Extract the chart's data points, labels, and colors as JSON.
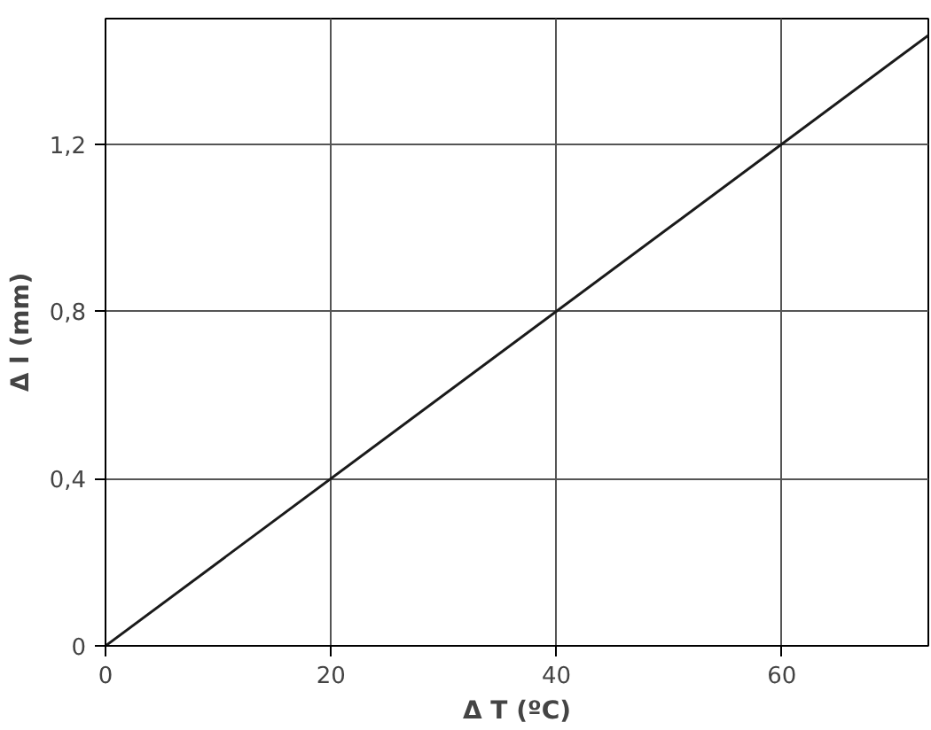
{
  "chart_data": {
    "type": "line",
    "xlabel": "Δ T (ºC)",
    "ylabel": "Δ l (mm)",
    "x": [
      0,
      73
    ],
    "series": [
      {
        "color": "#1a1a1a",
        "values": [
          0,
          1.46
        ]
      }
    ],
    "xlim": [
      0,
      73
    ],
    "ylim": [
      0,
      1.5
    ],
    "xticks": [
      0,
      20,
      40,
      60
    ],
    "yticks": [
      0,
      {
        "value": 0.4,
        "label": "0,4"
      },
      {
        "value": 0.8,
        "label": "0,8"
      },
      {
        "value": 1.2,
        "label": "1,2"
      }
    ],
    "grid": true,
    "marker": "none",
    "line_style": "solid"
  }
}
